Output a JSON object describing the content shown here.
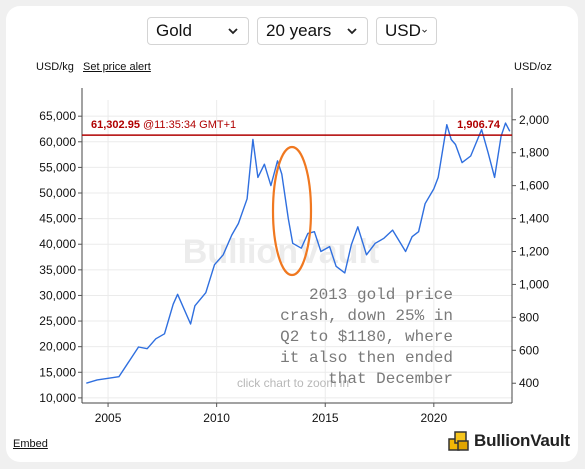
{
  "controls": {
    "metal": "Gold",
    "period": "20 years",
    "currency": "USD"
  },
  "header": {
    "left_unit": "USD/kg",
    "alert_link": "Set price alert",
    "right_unit": "USD/oz"
  },
  "price_line": {
    "kg_value": "61,302.95",
    "timestamp": "@11:35:34 GMT+1",
    "oz_value": "1,906.74",
    "value_oz": 1906.74
  },
  "watermark": "BullionVault",
  "hint": "click chart to zoom in",
  "annotation_lines": [
    "2013 gold price",
    "crash, down 25% in",
    "Q2 to $1180, where",
    "it also then ended",
    "that December"
  ],
  "footer": {
    "embed": "Embed",
    "brand": "BullionVault"
  },
  "colors": {
    "line": "#2f6fdf",
    "price_line": "#b00000",
    "ellipse": "#f07820",
    "annotation": "#7a7a7a"
  },
  "chart_data": {
    "type": "line",
    "title": "",
    "xlabel": "",
    "ylabel_left": "USD/kg",
    "ylabel_right": "USD/oz",
    "x_ticks": [
      "2005",
      "2010",
      "2015",
      "2020"
    ],
    "y_left_ticks": [
      "10,000",
      "15,000",
      "20,000",
      "25,000",
      "30,000",
      "35,000",
      "40,000",
      "45,000",
      "50,000",
      "55,000",
      "60,000",
      "65,000"
    ],
    "y_right_ticks": [
      "400",
      "600",
      "800",
      "1,000",
      "1,200",
      "1,400",
      "1,600",
      "1,800",
      "2,000"
    ],
    "y_right_tick_values": [
      400,
      600,
      800,
      1000,
      1200,
      1400,
      1600,
      1800,
      2000
    ],
    "ylim_oz": [
      280,
      2120
    ],
    "xlim": [
      2003.8,
      2023.6
    ],
    "series": [
      {
        "x": [
          2004.0,
          2004.5,
          2005.0,
          2005.5,
          2006.0,
          2006.4,
          2006.8,
          2007.2,
          2007.6,
          2008.0,
          2008.2,
          2008.8,
          2009.0,
          2009.5,
          2009.9,
          2010.3,
          2010.7,
          2011.0,
          2011.4,
          2011.67,
          2011.9,
          2012.2,
          2012.5,
          2012.8,
          2013.0,
          2013.3,
          2013.5,
          2013.9,
          2014.2,
          2014.5,
          2014.8,
          2015.2,
          2015.5,
          2015.9,
          2016.2,
          2016.5,
          2016.9,
          2017.3,
          2017.7,
          2018.1,
          2018.7,
          2019.0,
          2019.3,
          2019.6,
          2020.0,
          2020.2,
          2020.6,
          2020.8,
          2021.0,
          2021.3,
          2021.7,
          2022.2,
          2022.5,
          2022.8,
          2023.1,
          2023.3,
          2023.5
        ],
        "y": [
          400,
          420,
          430,
          440,
          540,
          620,
          610,
          670,
          700,
          880,
          940,
          760,
          870,
          950,
          1120,
          1180,
          1300,
          1370,
          1520,
          1880,
          1650,
          1730,
          1600,
          1750,
          1670,
          1400,
          1250,
          1220,
          1310,
          1320,
          1200,
          1230,
          1110,
          1070,
          1240,
          1350,
          1180,
          1250,
          1280,
          1330,
          1200,
          1290,
          1320,
          1490,
          1580,
          1650,
          1970,
          1880,
          1850,
          1740,
          1780,
          1940,
          1800,
          1650,
          1900,
          1980,
          1930
        ]
      }
    ]
  }
}
